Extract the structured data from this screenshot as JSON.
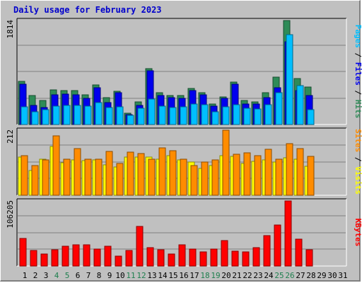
{
  "title": "Daily usage for February 2023",
  "colors": {
    "hits": "#2e8b57",
    "files": "#0000ee",
    "pages": "#00bfff",
    "visits": "#ffff00",
    "sites": "#ff8c00",
    "kbytes": "#ff0000",
    "weekend_label": "#1e7f4e",
    "weekday_label": "#000000",
    "title": "#0000cc"
  },
  "chart_data": [
    {
      "type": "bar",
      "panel": "top",
      "ymax_label": "1814",
      "ylim": [
        0,
        1814
      ],
      "right_label": {
        "pages": "Pages",
        "files": "Files",
        "hits": "Hits",
        "sep": " / "
      },
      "categories": [
        "1",
        "2",
        "3",
        "4",
        "5",
        "6",
        "7",
        "8",
        "9",
        "10",
        "11",
        "12",
        "13",
        "14",
        "15",
        "16",
        "17",
        "18",
        "19",
        "20",
        "21",
        "22",
        "23",
        "24",
        "25",
        "26",
        "27",
        "28",
        "29",
        "30",
        "31"
      ],
      "series": [
        {
          "name": "Hits",
          "color": "#2e8b57",
          "values": [
            755,
            510,
            420,
            600,
            595,
            595,
            520,
            685,
            465,
            585,
            200,
            400,
            970,
            555,
            500,
            500,
            630,
            555,
            360,
            480,
            740,
            425,
            400,
            550,
            830,
            1814,
            800,
            650,
            null,
            null,
            null
          ]
        },
        {
          "name": "Files",
          "color": "#0000ee",
          "values": [
            705,
            330,
            300,
            520,
            530,
            520,
            460,
            640,
            385,
            560,
            175,
            335,
            935,
            505,
            470,
            455,
            595,
            515,
            320,
            455,
            705,
            360,
            355,
            475,
            645,
            1445,
            590,
            510,
            null,
            null,
            null
          ]
        },
        {
          "name": "Pages",
          "color": "#00bfff",
          "values": [
            305,
            225,
            260,
            320,
            330,
            335,
            315,
            380,
            295,
            310,
            165,
            280,
            440,
            320,
            290,
            305,
            355,
            350,
            225,
            310,
            340,
            280,
            275,
            345,
            550,
            1565,
            675,
            255,
            null,
            null,
            null
          ]
        }
      ]
    },
    {
      "type": "bar",
      "panel": "middle",
      "ymax_label": "212",
      "ylim": [
        0,
        212
      ],
      "right_label": {
        "sites": "Sites",
        "visits": "Visits",
        "sep": " / "
      },
      "categories": [
        "1",
        "2",
        "3",
        "4",
        "5",
        "6",
        "7",
        "8",
        "9",
        "10",
        "11",
        "12",
        "13",
        "14",
        "15",
        "16",
        "17",
        "18",
        "19",
        "20",
        "21",
        "22",
        "23",
        "24",
        "25",
        "26",
        "27",
        "28",
        "29",
        "30",
        "31"
      ],
      "series": [
        {
          "name": "Visits",
          "color": "#ffff00",
          "values": [
            125,
            80,
            118,
            160,
            105,
            115,
            114,
            116,
            98,
            93,
            125,
            125,
            124,
            118,
            128,
            116,
            108,
            87,
            96,
            130,
            127,
            103,
            110,
            116,
            108,
            123,
            117,
            94,
            null,
            null,
            null
          ]
        },
        {
          "name": "Sites",
          "color": "#ff8c00",
          "values": [
            130,
            97,
            115,
            193,
            117,
            152,
            117,
            118,
            143,
            104,
            140,
            137,
            118,
            154,
            146,
            118,
            97,
            108,
            116,
            212,
            133,
            138,
            128,
            150,
            117,
            168,
            153,
            127,
            null,
            null,
            null
          ]
        }
      ]
    },
    {
      "type": "bar",
      "panel": "bottom",
      "ymax_label": "106205",
      "ylim": [
        0,
        106205
      ],
      "right_label": {
        "kbytes": "KBytes"
      },
      "categories": [
        "1",
        "2",
        "3",
        "4",
        "5",
        "6",
        "7",
        "8",
        "9",
        "10",
        "11",
        "12",
        "13",
        "14",
        "15",
        "16",
        "17",
        "18",
        "19",
        "20",
        "21",
        "22",
        "23",
        "24",
        "25",
        "26",
        "27",
        "28",
        "29",
        "30",
        "31"
      ],
      "series": [
        {
          "name": "KBytes",
          "color": "#ff0000",
          "values": [
            45000,
            25000,
            20000,
            26500,
            32000,
            35000,
            35000,
            28000,
            32000,
            16000,
            25000,
            65000,
            29500,
            26000,
            20000,
            35000,
            27500,
            23000,
            27500,
            42000,
            24000,
            23000,
            30500,
            50000,
            67000,
            106205,
            43500,
            27000,
            null,
            null,
            null
          ]
        }
      ]
    }
  ],
  "x_labels": [
    "1",
    "2",
    "3",
    "4",
    "5",
    "6",
    "7",
    "8",
    "9",
    "10",
    "11",
    "12",
    "13",
    "14",
    "15",
    "16",
    "17",
    "18",
    "19",
    "20",
    "21",
    "22",
    "23",
    "24",
    "25",
    "26",
    "27",
    "28",
    "29",
    "30",
    "31"
  ],
  "weekend_days": [
    "4",
    "5",
    "11",
    "12",
    "18",
    "19",
    "25",
    "26"
  ]
}
